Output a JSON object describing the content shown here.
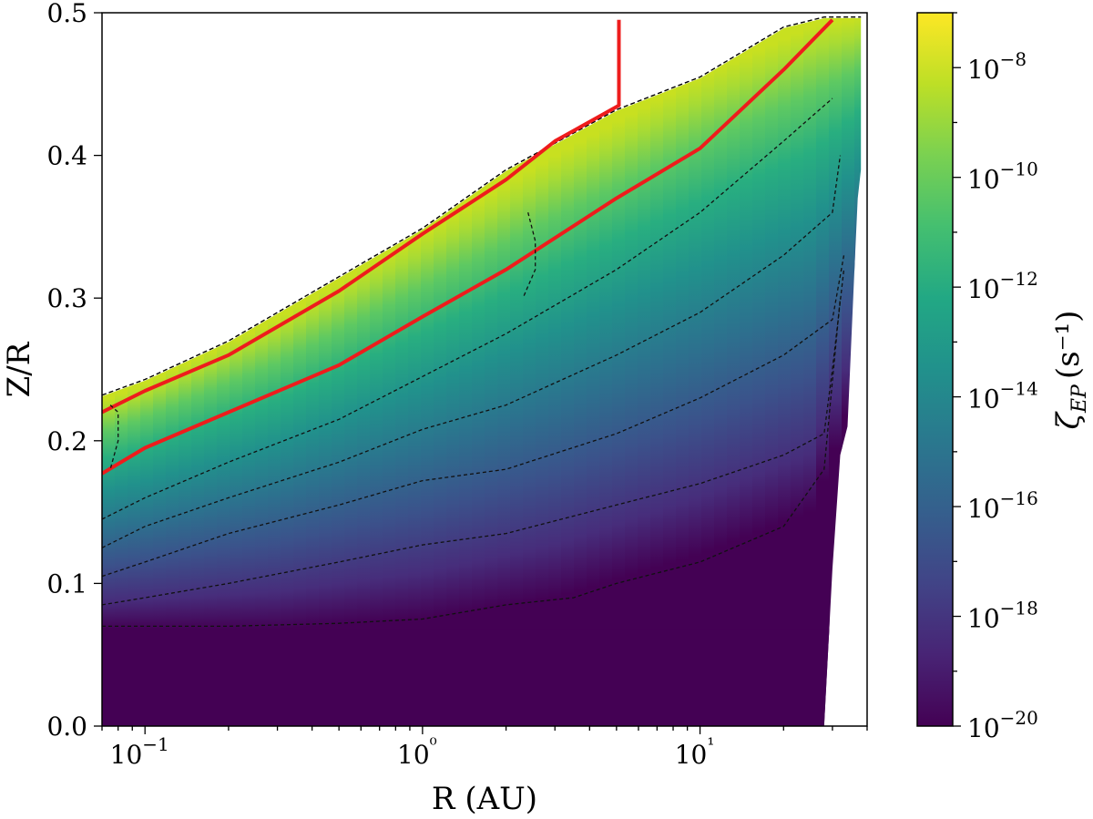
{
  "chart_data": {
    "type": "heatmap",
    "title": "",
    "xlabel": "R (AU)",
    "ylabel": "Z/R",
    "x_scale": "log",
    "xlim": [
      0.07,
      40
    ],
    "ylim": [
      0.0,
      0.5
    ],
    "x_ticks": [
      {
        "value": 0.1,
        "label": "10−1"
      },
      {
        "value": 1,
        "label": "10⁰"
      },
      {
        "value": 10,
        "label": "10¹"
      }
    ],
    "y_ticks": [
      {
        "value": 0.0,
        "label": "0.0"
      },
      {
        "value": 0.1,
        "label": "0.1"
      },
      {
        "value": 0.2,
        "label": "0.2"
      },
      {
        "value": 0.3,
        "label": "0.3"
      },
      {
        "value": 0.4,
        "label": "0.4"
      },
      {
        "value": 0.5,
        "label": "0.5"
      }
    ],
    "colorbar": {
      "label": "ζEP (s⁻¹)",
      "label_symbol": "ζ",
      "label_subscript": "EP",
      "label_unit": "(s⁻¹)",
      "scale": "log",
      "range_exponent": [
        -20,
        -7
      ],
      "colormap": "viridis",
      "ticks": [
        {
          "exponent": -8,
          "label": "10−8"
        },
        {
          "exponent": -10,
          "label": "10−10"
        },
        {
          "exponent": -12,
          "label": "10−12"
        },
        {
          "exponent": -14,
          "label": "10−14"
        },
        {
          "exponent": -16,
          "label": "10−16"
        },
        {
          "exponent": -18,
          "label": "10−18"
        },
        {
          "exponent": -20,
          "label": "10−20"
        }
      ]
    },
    "domain_top": [
      {
        "r": 0.07,
        "zr": 0.232
      },
      {
        "r": 0.1,
        "zr": 0.243
      },
      {
        "r": 0.2,
        "zr": 0.27
      },
      {
        "r": 0.5,
        "zr": 0.315
      },
      {
        "r": 1.0,
        "zr": 0.349
      },
      {
        "r": 2.0,
        "zr": 0.39
      },
      {
        "r": 5.0,
        "zr": 0.432
      },
      {
        "r": 10,
        "zr": 0.455
      },
      {
        "r": 20,
        "zr": 0.49
      },
      {
        "r": 28,
        "zr": 0.497
      },
      {
        "r": 38,
        "zr": 0.497
      }
    ],
    "domain_right_edge": [
      {
        "zr": 0.5,
        "r": 38
      },
      {
        "zr": 0.39,
        "r": 38
      },
      {
        "zr": 0.37,
        "r": 37
      },
      {
        "zr": 0.32,
        "r": 36
      },
      {
        "zr": 0.21,
        "r": 34
      },
      {
        "zr": 0.19,
        "r": 32
      },
      {
        "zr": 0.11,
        "r": 30
      },
      {
        "zr": 0.0,
        "r": 28
      }
    ],
    "floor_zr": 0.068,
    "floor_value_exponent": -20,
    "vertical_gradient": [
      {
        "r": 0.07,
        "z0": 0.068,
        "z1": 0.228
      },
      {
        "r": 0.1,
        "z0": 0.068,
        "z1": 0.24
      },
      {
        "r": 0.3,
        "z0": 0.068,
        "z1": 0.285
      },
      {
        "r": 1.0,
        "z0": 0.075,
        "z1": 0.345
      },
      {
        "r": 3.0,
        "z0": 0.09,
        "z1": 0.4
      },
      {
        "r": 10,
        "z0": 0.12,
        "z1": 0.455
      },
      {
        "r": 25,
        "z0": 0.15,
        "z1": 0.49
      },
      {
        "r": 38,
        "z0": 0.24,
        "z1": 0.497
      }
    ],
    "series": [
      {
        "style": "red-solid",
        "points": [
          {
            "r": 0.07,
            "zr": 0.22
          },
          {
            "r": 0.1,
            "zr": 0.235
          },
          {
            "r": 0.2,
            "zr": 0.26
          },
          {
            "r": 0.5,
            "zr": 0.305
          },
          {
            "r": 1.0,
            "zr": 0.345
          },
          {
            "r": 2.0,
            "zr": 0.383
          },
          {
            "r": 3.0,
            "zr": 0.41
          },
          {
            "r": 5.1,
            "zr": 0.435
          },
          {
            "r": 5.1,
            "zr": 0.495
          }
        ]
      },
      {
        "style": "red-solid",
        "points": [
          {
            "r": 0.07,
            "zr": 0.177
          },
          {
            "r": 0.1,
            "zr": 0.195
          },
          {
            "r": 0.2,
            "zr": 0.22
          },
          {
            "r": 0.5,
            "zr": 0.253
          },
          {
            "r": 1.0,
            "zr": 0.287
          },
          {
            "r": 2.0,
            "zr": 0.32
          },
          {
            "r": 5.0,
            "zr": 0.37
          },
          {
            "r": 10,
            "zr": 0.405
          },
          {
            "r": 20,
            "zr": 0.46
          },
          {
            "r": 30,
            "zr": 0.495
          }
        ]
      },
      {
        "style": "black-dashed",
        "points": [
          {
            "r": 0.075,
            "zr": 0.225
          },
          {
            "r": 0.08,
            "zr": 0.22
          },
          {
            "r": 0.08,
            "zr": 0.2
          },
          {
            "r": 0.075,
            "zr": 0.18
          }
        ]
      },
      {
        "style": "black-dashed",
        "points": [
          {
            "r": 0.07,
            "zr": 0.145
          },
          {
            "r": 0.1,
            "zr": 0.16
          },
          {
            "r": 0.2,
            "zr": 0.185
          },
          {
            "r": 0.5,
            "zr": 0.215
          },
          {
            "r": 1.0,
            "zr": 0.245
          },
          {
            "r": 2.0,
            "zr": 0.275
          },
          {
            "r": 5.0,
            "zr": 0.32
          },
          {
            "r": 10,
            "zr": 0.36
          },
          {
            "r": 20,
            "zr": 0.41
          },
          {
            "r": 30,
            "zr": 0.44
          }
        ]
      },
      {
        "style": "black-dashed",
        "points": [
          {
            "r": 0.07,
            "zr": 0.125
          },
          {
            "r": 0.1,
            "zr": 0.14
          },
          {
            "r": 0.2,
            "zr": 0.16
          },
          {
            "r": 0.5,
            "zr": 0.185
          },
          {
            "r": 1.0,
            "zr": 0.208
          },
          {
            "r": 2.0,
            "zr": 0.225
          },
          {
            "r": 5.0,
            "zr": 0.26
          },
          {
            "r": 10,
            "zr": 0.29
          },
          {
            "r": 20,
            "zr": 0.33
          },
          {
            "r": 30,
            "zr": 0.36
          },
          {
            "r": 32,
            "zr": 0.4
          }
        ]
      },
      {
        "style": "black-dashed",
        "points": [
          {
            "r": 0.07,
            "zr": 0.105
          },
          {
            "r": 0.1,
            "zr": 0.115
          },
          {
            "r": 0.2,
            "zr": 0.135
          },
          {
            "r": 0.5,
            "zr": 0.155
          },
          {
            "r": 1.0,
            "zr": 0.172
          },
          {
            "r": 2.0,
            "zr": 0.18
          },
          {
            "r": 5.0,
            "zr": 0.205
          },
          {
            "r": 10,
            "zr": 0.23
          },
          {
            "r": 20,
            "zr": 0.26
          },
          {
            "r": 30,
            "zr": 0.285
          },
          {
            "r": 33,
            "zr": 0.33
          }
        ]
      },
      {
        "style": "black-dashed",
        "points": [
          {
            "r": 0.07,
            "zr": 0.085
          },
          {
            "r": 0.1,
            "zr": 0.09
          },
          {
            "r": 0.2,
            "zr": 0.1
          },
          {
            "r": 0.5,
            "zr": 0.115
          },
          {
            "r": 1.0,
            "zr": 0.127
          },
          {
            "r": 2.0,
            "zr": 0.135
          },
          {
            "r": 5.0,
            "zr": 0.155
          },
          {
            "r": 10,
            "zr": 0.17
          },
          {
            "r": 20,
            "zr": 0.19
          },
          {
            "r": 28,
            "zr": 0.205
          },
          {
            "r": 30,
            "zr": 0.25
          },
          {
            "r": 33,
            "zr": 0.32
          }
        ]
      },
      {
        "style": "black-dashed",
        "points": [
          {
            "r": 0.07,
            "zr": 0.07
          },
          {
            "r": 0.2,
            "zr": 0.07
          },
          {
            "r": 0.5,
            "zr": 0.072
          },
          {
            "r": 1.0,
            "zr": 0.075
          },
          {
            "r": 2.0,
            "zr": 0.085
          },
          {
            "r": 3.5,
            "zr": 0.09
          },
          {
            "r": 5.0,
            "zr": 0.1
          },
          {
            "r": 10,
            "zr": 0.115
          },
          {
            "r": 20,
            "zr": 0.14
          },
          {
            "r": 28,
            "zr": 0.18
          },
          {
            "r": 32,
            "zr": 0.3
          }
        ]
      },
      {
        "style": "black-dashed",
        "points": [
          {
            "r": 2.4,
            "zr": 0.36
          },
          {
            "r": 2.55,
            "zr": 0.34
          },
          {
            "r": 2.55,
            "zr": 0.32
          },
          {
            "r": 2.3,
            "zr": 0.3
          }
        ]
      }
    ]
  }
}
